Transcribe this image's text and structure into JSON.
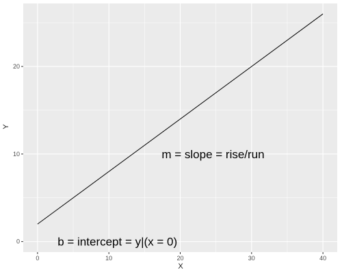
{
  "chart_data": {
    "type": "line",
    "title": "",
    "xlabel": "X",
    "ylabel": "Y",
    "xlim": [
      -2,
      42
    ],
    "ylim": [
      -1.2,
      27.2
    ],
    "x_ticks": [
      0,
      10,
      20,
      30,
      40
    ],
    "y_ticks": [
      0,
      10,
      20
    ],
    "grid": true,
    "legend": "none",
    "series": [
      {
        "x": [
          0,
          40
        ],
        "y": [
          2,
          26
        ]
      }
    ],
    "annotations": [
      {
        "text": "m = slope = rise/run",
        "x": 24.6,
        "y": 10
      },
      {
        "text": "b = intercept = y|(x = 0)",
        "x": 11.2,
        "y": 0
      }
    ],
    "colors": {
      "panel": "#EBEBEB",
      "grid_major": "#FFFFFF",
      "line": "#000000",
      "tick_label": "#4D4D4D",
      "axis_title": "#1A1A1A"
    }
  }
}
